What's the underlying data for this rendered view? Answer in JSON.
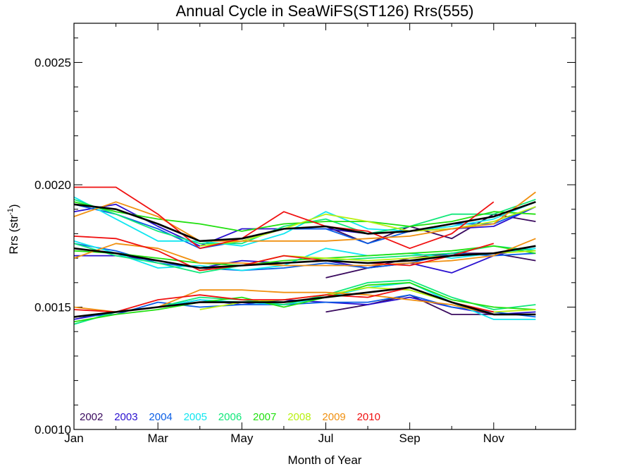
{
  "chart_data": {
    "type": "line",
    "title": "Annual Cycle in SeaWiFS(ST126) Rrs(555)",
    "xlabel": "Month of Year",
    "ylabel_main": "Rrs (str",
    "ylabel_sup": "-1",
    "ylabel_close": ")",
    "xlim": [
      1,
      12.95
    ],
    "ylim": [
      0.001,
      0.00266
    ],
    "x_ticks": [
      {
        "value": 1,
        "label": "Jan"
      },
      {
        "value": 3,
        "label": "Mar"
      },
      {
        "value": 5,
        "label": "May"
      },
      {
        "value": 7,
        "label": "Jul"
      },
      {
        "value": 9,
        "label": "Sep"
      },
      {
        "value": 11,
        "label": "Nov"
      }
    ],
    "y_ticks": [
      {
        "value": 0.001,
        "label": "0.0010"
      },
      {
        "value": 0.0015,
        "label": "0.0015"
      },
      {
        "value": 0.002,
        "label": "0.0020"
      },
      {
        "value": 0.0025,
        "label": "0.0025"
      }
    ],
    "legend_position": "bottom-left",
    "series": [
      {
        "name": "2002",
        "color": "#3a0a5e",
        "bands": [
          [
            null,
            null,
            null,
            null,
            null,
            null,
            0.00162,
            0.00166,
            0.0017,
            0.00172,
            0.00172,
            0.00169
          ],
          [
            null,
            null,
            null,
            null,
            null,
            null,
            0.00183,
            0.00176,
            0.00183,
            0.00178,
            0.00188,
            0.00185
          ],
          [
            null,
            null,
            null,
            null,
            null,
            null,
            0.00148,
            0.00151,
            0.00155,
            0.00147,
            0.00147,
            0.00147
          ]
        ]
      },
      {
        "name": "2003",
        "color": "#2a10d0",
        "bands": [
          [
            0.00171,
            0.00171,
            0.00169,
            0.00166,
            0.00169,
            0.00168,
            0.00169,
            0.00166,
            0.00168,
            0.00164,
            0.00171,
            0.00175
          ],
          [
            0.00189,
            0.00192,
            0.00183,
            0.00175,
            0.00182,
            0.00182,
            0.00182,
            0.0018,
            0.00181,
            0.00182,
            0.00183,
            0.00191
          ],
          [
            0.00145,
            0.00148,
            0.0015,
            0.00153,
            0.00151,
            0.00153,
            0.00152,
            0.00151,
            0.00154,
            0.0015,
            0.00147,
            0.00148
          ]
        ]
      },
      {
        "name": "2004",
        "color": "#0a5ee6",
        "bands": [
          [
            0.00176,
            0.00173,
            0.00168,
            0.00166,
            0.00165,
            0.00166,
            0.00168,
            0.00166,
            0.00168,
            0.00172,
            0.00171,
            0.00172
          ],
          [
            0.00192,
            0.00188,
            0.00182,
            0.00174,
            0.00177,
            0.00182,
            0.00182,
            0.00176,
            0.00181,
            0.00184,
            0.00184,
            0.00191
          ],
          [
            0.00146,
            0.00147,
            0.00152,
            0.0015,
            0.00151,
            0.00151,
            0.00152,
            0.00152,
            0.00155,
            0.0015,
            0.00148,
            0.00146
          ]
        ]
      },
      {
        "name": "2005",
        "color": "#10e6f0",
        "bands": [
          [
            0.00177,
            0.00172,
            0.00166,
            0.00167,
            0.00165,
            0.00167,
            0.00174,
            0.00171,
            0.00172,
            0.0017,
            0.00172,
            0.00174
          ],
          [
            0.00195,
            0.00186,
            0.00177,
            0.00177,
            0.00175,
            0.0018,
            0.00189,
            0.00182,
            0.00181,
            0.00183,
            0.00186,
            0.00193
          ],
          [
            0.00143,
            0.00148,
            0.0015,
            0.00153,
            0.00152,
            0.00151,
            0.00154,
            0.00158,
            0.0016,
            0.00152,
            0.00145,
            0.00145
          ]
        ]
      },
      {
        "name": "2006",
        "color": "#10e87a",
        "bands": [
          [
            0.00176,
            0.00171,
            0.00168,
            0.00164,
            0.00167,
            0.00168,
            0.00169,
            0.0017,
            0.00171,
            0.00172,
            0.00175,
            0.00173
          ],
          [
            0.00194,
            0.00188,
            0.00181,
            0.00176,
            0.00176,
            0.00183,
            0.00186,
            0.0018,
            0.00183,
            0.00188,
            0.00188,
            0.00194
          ],
          [
            0.00143,
            0.00148,
            0.0015,
            0.00154,
            0.00153,
            0.00151,
            0.00155,
            0.0016,
            0.00161,
            0.00154,
            0.00149,
            0.00151
          ]
        ]
      },
      {
        "name": "2007",
        "color": "#22e010",
        "bands": [
          [
            0.00173,
            0.00172,
            0.0017,
            0.00168,
            0.00167,
            0.00169,
            0.0017,
            0.00171,
            0.00172,
            0.00173,
            0.00175,
            0.00172
          ],
          [
            0.00193,
            0.00189,
            0.00186,
            0.00184,
            0.00181,
            0.00184,
            0.00185,
            0.00185,
            0.00183,
            0.00185,
            0.00189,
            0.00188
          ],
          [
            0.00144,
            0.00147,
            0.00149,
            0.00152,
            0.00154,
            0.0015,
            0.00154,
            0.00159,
            0.0016,
            0.00153,
            0.0015,
            0.00149
          ]
        ]
      },
      {
        "name": "2008",
        "color": "#b8f010",
        "bands": [
          [
            null,
            null,
            null,
            0.00165,
            0.00167,
            0.00171,
            0.0017,
            0.00169,
            0.0017,
            0.00171,
            0.00172,
            0.00173
          ],
          [
            null,
            null,
            null,
            0.00175,
            0.00177,
            0.00182,
            0.00188,
            0.00185,
            0.00181,
            0.00182,
            0.00185,
            0.00191
          ],
          [
            null,
            null,
            null,
            0.00149,
            0.00152,
            0.00153,
            0.00155,
            0.00158,
            0.00157,
            0.00152,
            0.00148,
            0.00149
          ]
        ]
      },
      {
        "name": "2009",
        "color": "#f09010",
        "bands": [
          [
            0.0017,
            0.00176,
            0.00174,
            0.00168,
            0.00168,
            0.00167,
            0.00167,
            0.00167,
            0.00168,
            0.00169,
            0.00171,
            0.00178
          ],
          [
            0.00187,
            0.00193,
            0.00187,
            0.00177,
            0.00177,
            0.00177,
            0.00177,
            0.00178,
            0.00179,
            0.00182,
            0.00184,
            0.00197
          ],
          [
            0.0015,
            0.00148,
            0.0015,
            0.00157,
            0.00157,
            0.00156,
            0.00156,
            0.00155,
            0.00153,
            0.00151,
            0.00147,
            0.00147
          ]
        ]
      },
      {
        "name": "2010",
        "color": "#f01010",
        "bands": [
          [
            0.00179,
            0.00178,
            0.00173,
            0.00165,
            0.00167,
            0.00171,
            0.00169,
            0.00168,
            0.00167,
            0.00171,
            0.00176,
            null
          ],
          [
            0.00199,
            0.00199,
            0.00188,
            0.00174,
            0.00178,
            0.00189,
            0.00183,
            0.00181,
            0.00174,
            0.0018,
            0.00193,
            null
          ],
          [
            0.00149,
            0.00148,
            0.00153,
            0.00155,
            0.00153,
            0.00153,
            0.00155,
            0.00154,
            0.00158,
            0.00152,
            0.00148,
            null
          ]
        ]
      },
      {
        "color": "#000000",
        "role": "mean",
        "bands": [
          [
            0.00174,
            0.00172,
            0.00169,
            0.00166,
            0.00167,
            0.00168,
            0.00169,
            0.00168,
            0.00169,
            0.00171,
            0.00172,
            0.00175
          ],
          [
            0.00192,
            0.0019,
            0.00184,
            0.00177,
            0.00178,
            0.00182,
            0.00183,
            0.0018,
            0.00181,
            0.00184,
            0.00187,
            0.00193
          ],
          [
            0.00146,
            0.00148,
            0.0015,
            0.00152,
            0.00152,
            0.00152,
            0.00154,
            0.00156,
            0.00158,
            0.00152,
            0.00147,
            0.00147
          ]
        ]
      }
    ]
  }
}
